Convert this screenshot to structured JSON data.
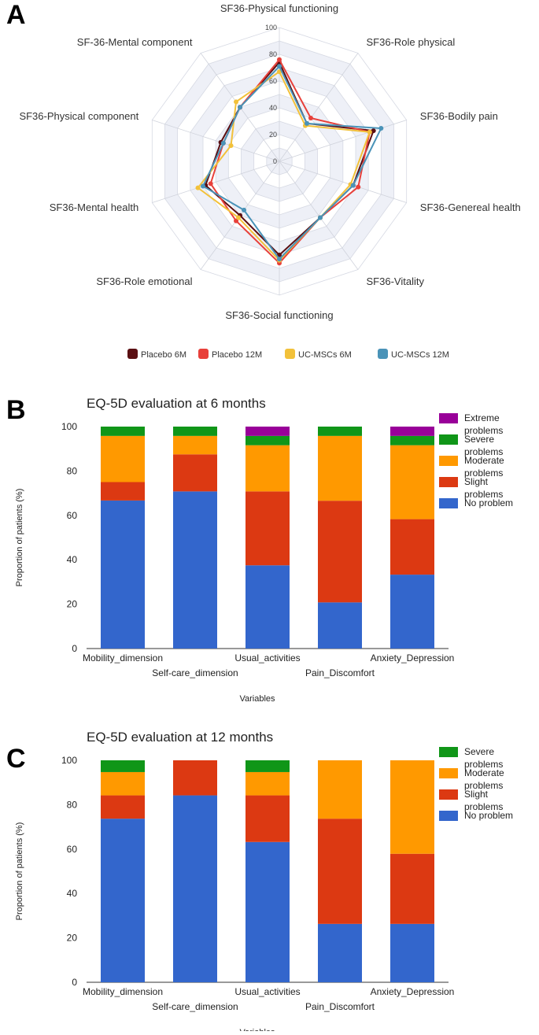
{
  "chart_data": [
    {
      "panel": "A",
      "type": "radar",
      "title": "",
      "rmax": 100,
      "rticks": [
        "0",
        "20",
        "40",
        "60",
        "80",
        "100"
      ],
      "rtick_values": [
        0,
        20,
        40,
        60,
        80,
        100
      ],
      "axes": [
        "SF36-Physical functioning",
        "SF36-Role physical",
        "SF36-Bodily pain",
        "SF36-Genereal health",
        "SF36-Vitality",
        "SF36-Social functioning",
        "SF36-Role emotional",
        "SF36-Mental health",
        "SF36-Physical component",
        "SF-36-Mental component"
      ],
      "series": [
        {
          "name": "Placebo 6M",
          "color": "#5a0f12",
          "values": [
            74,
            35,
            74,
            58,
            52,
            70,
            50,
            58,
            46,
            50
          ]
        },
        {
          "name": "Placebo 12M",
          "color": "#e8403a",
          "values": [
            76,
            40,
            71,
            62,
            52,
            76,
            55,
            54,
            44,
            50
          ]
        },
        {
          "name": "UC-MSCs 6M",
          "color": "#f2c13a",
          "values": [
            67,
            33,
            71,
            56,
            52,
            74,
            52,
            64,
            38,
            55
          ]
        },
        {
          "name": "UC-MSCs 12M",
          "color": "#4a93b8",
          "values": [
            71,
            35,
            80,
            58,
            52,
            73,
            45,
            60,
            44,
            50
          ]
        }
      ]
    },
    {
      "panel": "B",
      "type": "bar",
      "stacked": true,
      "title": "EQ-5D evaluation at 6 months",
      "xlabel": "Variables",
      "ylabel": "Proportion of patients (%)",
      "ylim": [
        0,
        100
      ],
      "yticks": [
        "0",
        "20",
        "40",
        "60",
        "80",
        "100"
      ],
      "categories": [
        "Mobility_dimension",
        "Self-care_dimension",
        "Usual_activities",
        "Pain_Discomfort",
        "Anxiety_Depression"
      ],
      "series": [
        {
          "name": "No problem",
          "color": "#3366cc",
          "values": [
            66.7,
            70.8,
            37.5,
            20.8,
            33.3
          ]
        },
        {
          "name": "Slight problems",
          "color": "#dc3912",
          "values": [
            8.3,
            16.7,
            33.3,
            45.8,
            25.0
          ]
        },
        {
          "name": "Moderate problems",
          "color": "#ff9900",
          "values": [
            20.8,
            8.3,
            20.8,
            29.2,
            33.3
          ]
        },
        {
          "name": "Severe problems",
          "color": "#109618",
          "values": [
            4.2,
            4.2,
            4.2,
            4.2,
            4.2
          ]
        },
        {
          "name": "Extreme problems",
          "color": "#990099",
          "values": [
            0,
            0,
            4.2,
            0,
            4.2
          ]
        }
      ],
      "legend": [
        {
          "line1": "Extreme",
          "line2": "problems",
          "color": "#990099"
        },
        {
          "line1": "Severe",
          "line2": "problems",
          "color": "#109618"
        },
        {
          "line1": "Moderate",
          "line2": "problems",
          "color": "#ff9900"
        },
        {
          "line1": "Slight",
          "line2": "problems",
          "color": "#dc3912"
        },
        {
          "line1": "No problem",
          "line2": "",
          "color": "#3366cc"
        }
      ]
    },
    {
      "panel": "C",
      "type": "bar",
      "stacked": true,
      "title": "EQ-5D evaluation at 12 months",
      "xlabel": "Variables",
      "ylabel": "Proportion of patients (%)",
      "ylim": [
        0,
        100
      ],
      "yticks": [
        "0",
        "20",
        "40",
        "60",
        "80",
        "100"
      ],
      "categories": [
        "Mobility_dimension",
        "Self-care_dimension",
        "Usual_activities",
        "Pain_Discomfort",
        "Anxiety_Depression"
      ],
      "series": [
        {
          "name": "No problem",
          "color": "#3366cc",
          "values": [
            73.7,
            84.2,
            63.2,
            26.3,
            26.3
          ]
        },
        {
          "name": "Slight problems",
          "color": "#dc3912",
          "values": [
            10.5,
            15.8,
            21.0,
            47.4,
            31.6
          ]
        },
        {
          "name": "Moderate problems",
          "color": "#ff9900",
          "values": [
            10.5,
            0,
            10.5,
            26.3,
            42.1
          ]
        },
        {
          "name": "Severe problems",
          "color": "#109618",
          "values": [
            5.3,
            0,
            5.3,
            0,
            0
          ]
        }
      ],
      "legend": [
        {
          "line1": "Severe",
          "line2": "problems",
          "color": "#109618"
        },
        {
          "line1": "Moderate",
          "line2": "problems",
          "color": "#ff9900"
        },
        {
          "line1": "Slight",
          "line2": "problems",
          "color": "#dc3912"
        },
        {
          "line1": "No problem",
          "line2": "",
          "color": "#3366cc"
        }
      ]
    }
  ],
  "panels": {
    "a": "A",
    "b": "B",
    "c": "C"
  }
}
